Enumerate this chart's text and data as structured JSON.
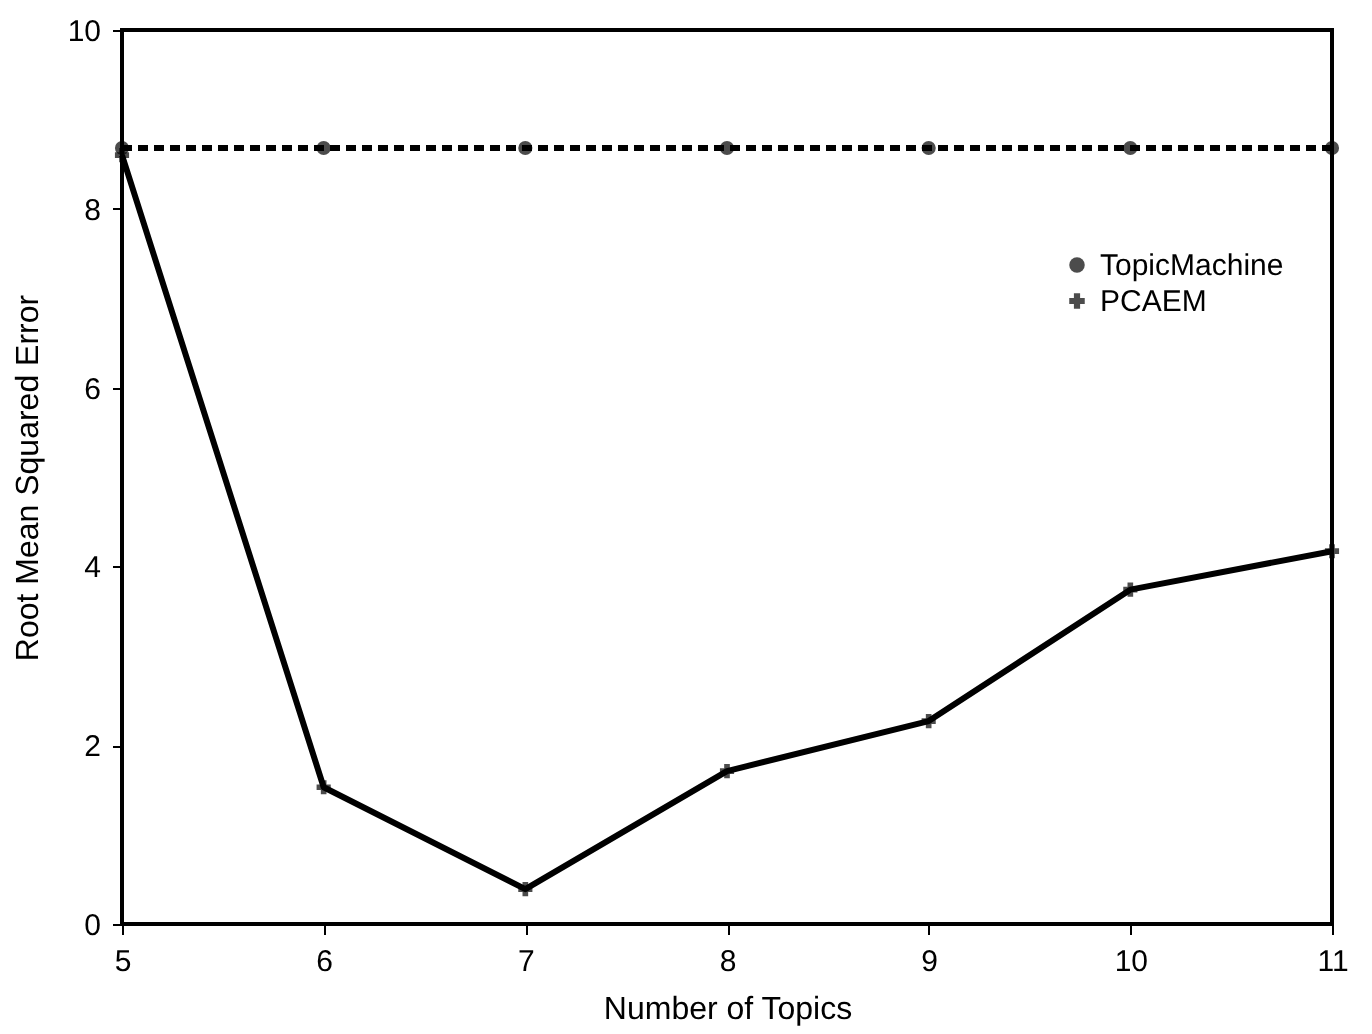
{
  "chart_data": {
    "type": "line",
    "xlabel": "Number of Topics",
    "ylabel": "Root Mean Squared Error",
    "x": [
      5,
      6,
      7,
      8,
      9,
      10,
      11
    ],
    "series": [
      {
        "name": "TopicMachine",
        "color": "#000000",
        "line_style": "dashed",
        "marker": "circle",
        "values": [
          8.68,
          8.68,
          8.68,
          8.68,
          8.68,
          8.68,
          8.68
        ]
      },
      {
        "name": "PCAEM",
        "color": "#000000",
        "line_style": "solid",
        "marker": "cross",
        "values": [
          8.6,
          1.53,
          0.39,
          1.71,
          2.27,
          3.74,
          4.17
        ]
      }
    ],
    "xlim": [
      5,
      11
    ],
    "xticks": [
      5,
      6,
      7,
      8,
      9,
      10,
      11
    ],
    "ylim": [
      0,
      10
    ],
    "yticks": [
      0,
      2,
      4,
      6,
      8,
      10
    ],
    "grid": false,
    "legend": "top right"
  }
}
